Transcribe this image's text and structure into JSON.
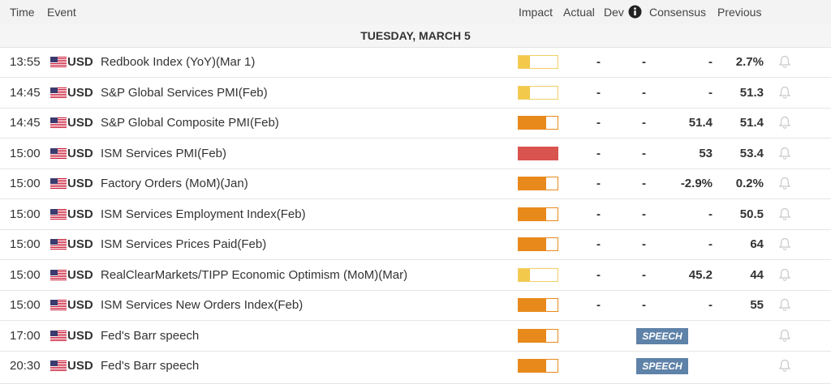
{
  "header": {
    "time": "Time",
    "event": "Event",
    "impact": "Impact",
    "actual": "Actual",
    "dev": "Dev",
    "consensus": "Consensus",
    "previous": "Previous"
  },
  "date": "TUESDAY, MARCH 5",
  "rows": [
    {
      "time": "13:55",
      "currency": "USD",
      "event": "Redbook Index (YoY)(Mar 1)",
      "impact": "low",
      "actual": "-",
      "dev": "-",
      "consensus": "-",
      "previous": "2.7%"
    },
    {
      "time": "14:45",
      "currency": "USD",
      "event": "S&P Global Services PMI(Feb)",
      "impact": "low",
      "actual": "-",
      "dev": "-",
      "consensus": "-",
      "previous": "51.3"
    },
    {
      "time": "14:45",
      "currency": "USD",
      "event": "S&P Global Composite PMI(Feb)",
      "impact": "medium",
      "actual": "-",
      "dev": "-",
      "consensus": "51.4",
      "previous": "51.4"
    },
    {
      "time": "15:00",
      "currency": "USD",
      "event": "ISM Services PMI(Feb)",
      "impact": "high",
      "actual": "-",
      "dev": "-",
      "consensus": "53",
      "previous": "53.4"
    },
    {
      "time": "15:00",
      "currency": "USD",
      "event": "Factory Orders (MoM)(Jan)",
      "impact": "medium",
      "actual": "-",
      "dev": "-",
      "consensus": "-2.9%",
      "previous": "0.2%"
    },
    {
      "time": "15:00",
      "currency": "USD",
      "event": "ISM Services Employment Index(Feb)",
      "impact": "medium",
      "actual": "-",
      "dev": "-",
      "consensus": "-",
      "previous": "50.5"
    },
    {
      "time": "15:00",
      "currency": "USD",
      "event": "ISM Services Prices Paid(Feb)",
      "impact": "medium",
      "actual": "-",
      "dev": "-",
      "consensus": "-",
      "previous": "64"
    },
    {
      "time": "15:00",
      "currency": "USD",
      "event": "RealClearMarkets/TIPP Economic Optimism (MoM)(Mar)",
      "impact": "low",
      "actual": "-",
      "dev": "-",
      "consensus": "45.2",
      "previous": "44"
    },
    {
      "time": "15:00",
      "currency": "USD",
      "event": "ISM Services New Orders Index(Feb)",
      "impact": "medium",
      "actual": "-",
      "dev": "-",
      "consensus": "-",
      "previous": "55"
    },
    {
      "time": "17:00",
      "currency": "USD",
      "event": "Fed's Barr speech",
      "impact": "medium",
      "badge": "SPEECH"
    },
    {
      "time": "20:30",
      "currency": "USD",
      "event": "Fed's Barr speech",
      "impact": "medium",
      "badge": "SPEECH"
    }
  ]
}
